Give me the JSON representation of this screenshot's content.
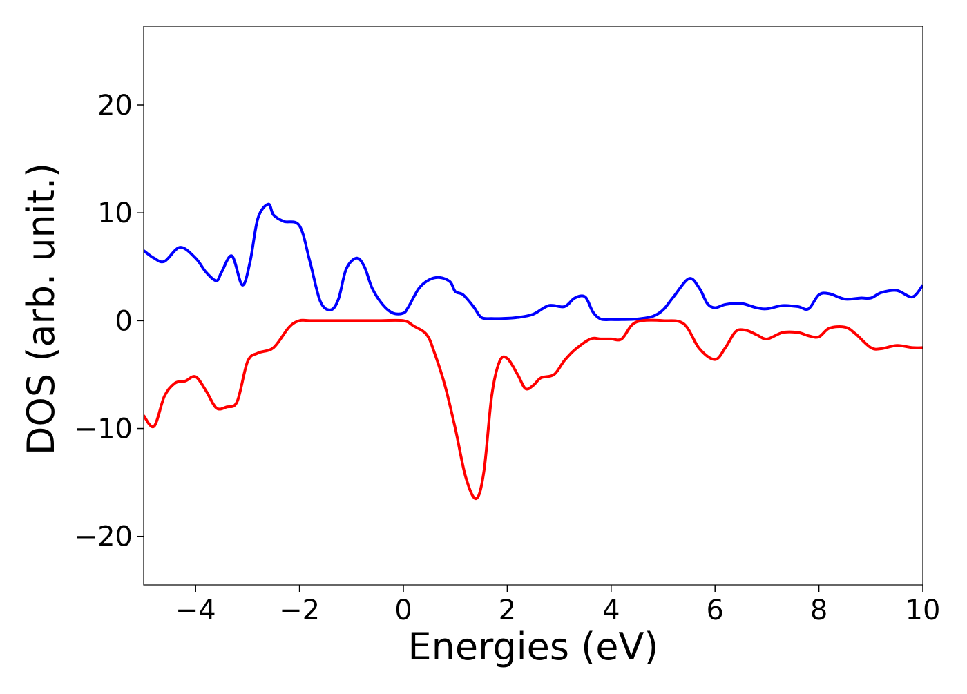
{
  "chart_data": {
    "type": "line",
    "title": "",
    "xlabel": "Energies (eV)",
    "ylabel": "DOS (arb. unit.)",
    "xlim": [
      -5,
      10
    ],
    "ylim": [
      -24.5,
      27.3
    ],
    "grid": false,
    "xticks": [
      -4,
      -2,
      0,
      2,
      4,
      6,
      8,
      10
    ],
    "xtick_labels": [
      "−4",
      "−2",
      "0",
      "2",
      "4",
      "6",
      "8",
      "10"
    ],
    "yticks": [
      -20,
      -10,
      0,
      10,
      20
    ],
    "ytick_labels": [
      "−20",
      "−10",
      "0",
      "10",
      "20"
    ],
    "series": [
      {
        "color": "#0000ff",
        "x": [
          -5.0,
          -4.8,
          -4.6,
          -4.3,
          -4.0,
          -3.8,
          -3.6,
          -3.5,
          -3.3,
          -3.1,
          -2.95,
          -2.8,
          -2.6,
          -2.5,
          -2.3,
          -2.0,
          -1.8,
          -1.6,
          -1.4,
          -1.25,
          -1.1,
          -0.9,
          -0.75,
          -0.6,
          -0.4,
          -0.2,
          0.0,
          0.1,
          0.3,
          0.5,
          0.7,
          0.9,
          1.0,
          1.15,
          1.35,
          1.5,
          1.7,
          1.9,
          2.2,
          2.5,
          2.8,
          3.1,
          3.3,
          3.5,
          3.65,
          3.8,
          4.0,
          4.2,
          4.5,
          4.8,
          5.0,
          5.2,
          5.5,
          5.7,
          5.85,
          6.0,
          6.2,
          6.5,
          6.8,
          7.0,
          7.3,
          7.6,
          7.8,
          8.0,
          8.2,
          8.5,
          8.8,
          9.0,
          9.2,
          9.5,
          9.8,
          10.0
        ],
        "y": [
          6.5,
          5.8,
          5.5,
          6.8,
          5.8,
          4.5,
          3.7,
          4.5,
          6.0,
          3.3,
          5.5,
          9.5,
          10.8,
          9.8,
          9.2,
          8.8,
          5.5,
          1.8,
          1.0,
          2.0,
          4.8,
          5.8,
          5.0,
          3.0,
          1.5,
          0.7,
          0.7,
          1.3,
          3.0,
          3.8,
          4.0,
          3.6,
          2.7,
          2.4,
          1.3,
          0.3,
          0.2,
          0.2,
          0.3,
          0.6,
          1.4,
          1.3,
          2.1,
          2.2,
          0.8,
          0.15,
          0.1,
          0.1,
          0.15,
          0.4,
          1.0,
          2.2,
          3.9,
          3.0,
          1.6,
          1.2,
          1.5,
          1.6,
          1.2,
          1.1,
          1.4,
          1.3,
          1.1,
          2.4,
          2.5,
          2.0,
          2.1,
          2.1,
          2.6,
          2.8,
          2.2,
          3.3
        ]
      },
      {
        "color": "#ff0000",
        "x": [
          -5.0,
          -4.8,
          -4.6,
          -4.4,
          -4.2,
          -4.0,
          -3.8,
          -3.6,
          -3.4,
          -3.2,
          -3.0,
          -2.8,
          -2.5,
          -2.2,
          -2.0,
          -1.8,
          -1.5,
          -1.0,
          -0.5,
          0.0,
          0.2,
          0.45,
          0.6,
          0.8,
          1.0,
          1.2,
          1.4,
          1.55,
          1.7,
          1.85,
          2.0,
          2.2,
          2.35,
          2.5,
          2.65,
          2.9,
          3.1,
          3.3,
          3.6,
          3.8,
          4.0,
          4.2,
          4.4,
          4.6,
          5.0,
          5.4,
          5.7,
          6.0,
          6.2,
          6.4,
          6.6,
          6.8,
          7.0,
          7.3,
          7.6,
          7.8,
          8.0,
          8.2,
          8.5,
          8.7,
          9.0,
          9.2,
          9.5,
          9.8,
          10.0
        ],
        "y": [
          -8.8,
          -9.8,
          -7.0,
          -5.8,
          -5.6,
          -5.2,
          -6.5,
          -8.1,
          -8.0,
          -7.5,
          -3.8,
          -3.0,
          -2.5,
          -0.6,
          0.0,
          0.0,
          0.0,
          0.0,
          0.0,
          0.0,
          -0.5,
          -1.3,
          -3.0,
          -6.0,
          -10.0,
          -14.5,
          -16.5,
          -14.0,
          -7.0,
          -3.8,
          -3.5,
          -5.0,
          -6.3,
          -6.0,
          -5.3,
          -5.0,
          -3.7,
          -2.7,
          -1.7,
          -1.7,
          -1.7,
          -1.7,
          -0.4,
          0.0,
          0.0,
          -0.3,
          -2.6,
          -3.6,
          -2.5,
          -1.0,
          -0.9,
          -1.3,
          -1.7,
          -1.1,
          -1.1,
          -1.4,
          -1.5,
          -0.7,
          -0.6,
          -1.2,
          -2.5,
          -2.6,
          -2.3,
          -2.5,
          -2.5
        ]
      }
    ]
  }
}
